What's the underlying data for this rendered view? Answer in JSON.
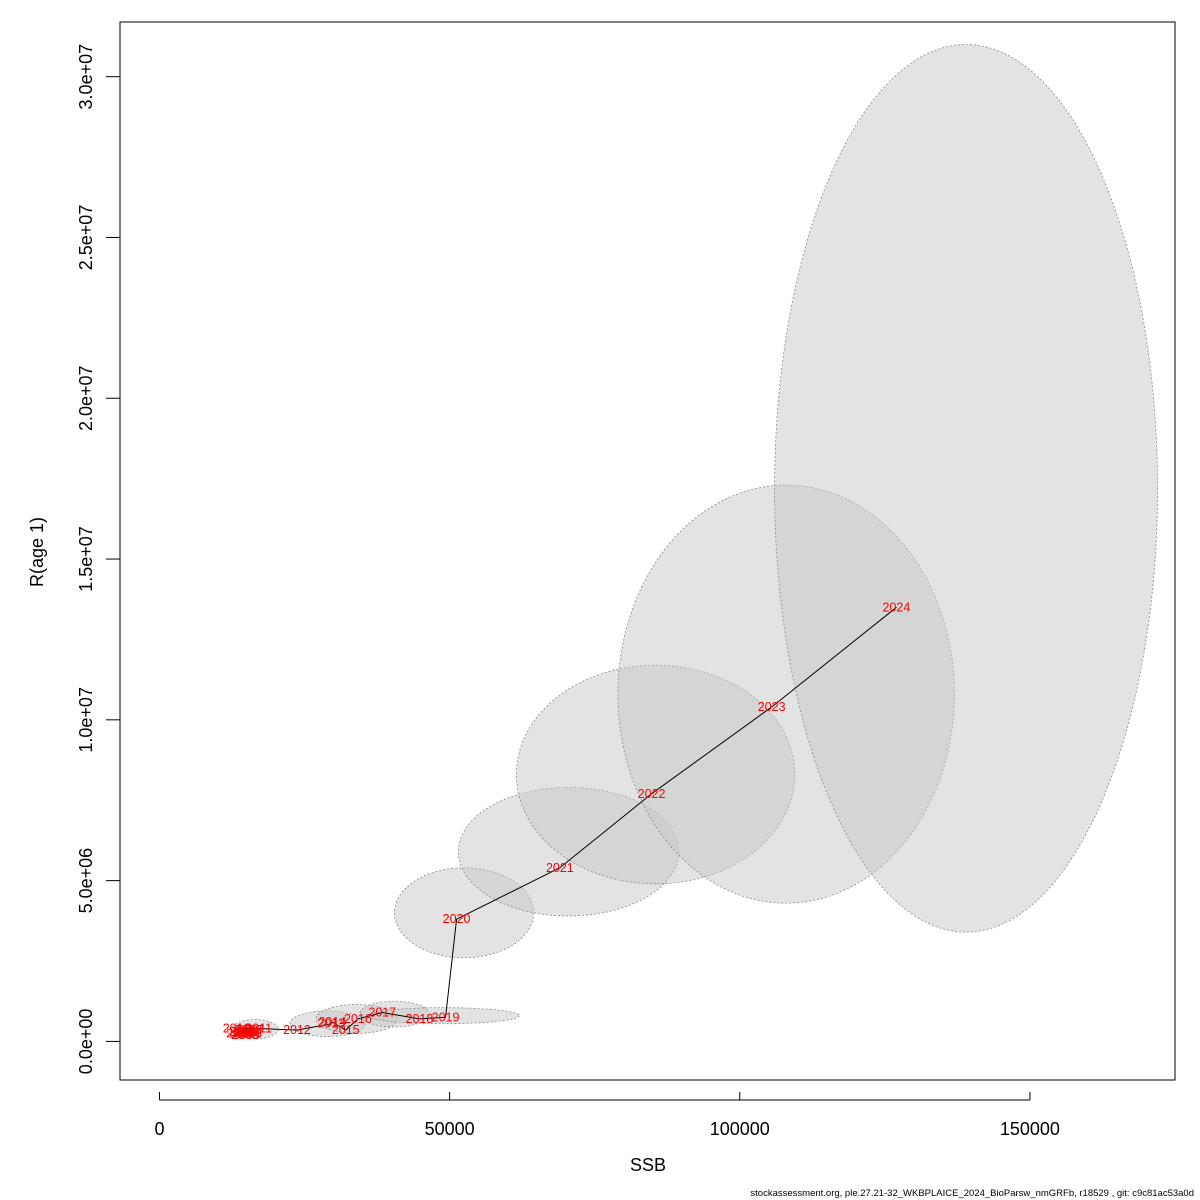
{
  "chart_data": {
    "type": "scatter",
    "xlabel": "SSB",
    "ylabel": "R(age 1)",
    "xlim": [
      -6800,
      175000
    ],
    "ylim": [
      -1200000,
      31700000
    ],
    "x_ticks": [
      0,
      50000,
      100000,
      150000
    ],
    "x_tick_labels": [
      "0",
      "50000",
      "100000",
      "150000"
    ],
    "y_ticks": [
      0,
      5000000,
      10000000,
      15000000,
      20000000,
      25000000,
      30000000
    ],
    "y_tick_labels": [
      "0.0e+00",
      "5.0e+06",
      "1.0e+07",
      "1.5e+07",
      "2.0e+07",
      "2.5e+07",
      "3.0e+07"
    ],
    "colors": {
      "labels": "#ff0000",
      "line": "#000000",
      "ellipse_fill": "#c8c8c8",
      "ellipse_stroke": "#8a8a8a"
    },
    "points": [
      {
        "year": "2002",
        "x": 14400,
        "y": 300000
      },
      {
        "year": "2003",
        "x": 14700,
        "y": 200000
      },
      {
        "year": "2004",
        "x": 15000,
        "y": 300000
      },
      {
        "year": "2005",
        "x": 14900,
        "y": 200000
      },
      {
        "year": "2006",
        "x": 15300,
        "y": 250000
      },
      {
        "year": "2007",
        "x": 15700,
        "y": 350000
      },
      {
        "year": "2008",
        "x": 13900,
        "y": 250000
      },
      {
        "year": "2009",
        "x": 15300,
        "y": 350000
      },
      {
        "year": "2010",
        "x": 13300,
        "y": 400000
      },
      {
        "year": "2011",
        "x": 17100,
        "y": 400000
      },
      {
        "year": "2012",
        "x": 23700,
        "y": 350000
      },
      {
        "year": "2013",
        "x": 29600,
        "y": 550000
      },
      {
        "year": "2014",
        "x": 29800,
        "y": 600000
      },
      {
        "year": "2015",
        "x": 32100,
        "y": 350000
      },
      {
        "year": "2016",
        "x": 34200,
        "y": 700000
      },
      {
        "year": "2017",
        "x": 38400,
        "y": 900000
      },
      {
        "year": "2018",
        "x": 44800,
        "y": 700000
      },
      {
        "year": "2019",
        "x": 49300,
        "y": 750000
      },
      {
        "year": "2020",
        "x": 51200,
        "y": 3800000
      },
      {
        "year": "2021",
        "x": 69000,
        "y": 5400000
      },
      {
        "year": "2022",
        "x": 84800,
        "y": 7700000
      },
      {
        "year": "2023",
        "x": 105500,
        "y": 10400000
      },
      {
        "year": "2024",
        "x": 127000,
        "y": 13500000
      }
    ],
    "ellipses": [
      {
        "year": "2013",
        "cx": 29000,
        "cy": 550000,
        "rx": 6500,
        "ry": 400000
      },
      {
        "year": "2016",
        "cx": 34000,
        "cy": 700000,
        "rx": 7000,
        "ry": 450000
      },
      {
        "year": "2017",
        "cx": 40500,
        "cy": 850000,
        "rx": 6000,
        "ry": 400000
      },
      {
        "year": "2019",
        "cx": 49000,
        "cy": 800000,
        "rx": 13000,
        "ry": 250000
      },
      {
        "year": "2011",
        "cx": 16500,
        "cy": 380000,
        "rx": 4000,
        "ry": 300000
      },
      {
        "year": "2020",
        "cx": 52500,
        "cy": 4000000,
        "rx": 12000,
        "ry": 1400000
      },
      {
        "year": "2021",
        "cx": 70500,
        "cy": 5900000,
        "rx": 19000,
        "ry": 2000000
      },
      {
        "year": "2022",
        "cx": 85500,
        "cy": 8300000,
        "rx": 24000,
        "ry": 3400000
      },
      {
        "year": "2023",
        "cx": 108000,
        "cy": 10800000,
        "rx": 29000,
        "ry": 6500000
      },
      {
        "year": "2024",
        "cx": 139000,
        "cy": 17200000,
        "rx": 33000,
        "ry": 13800000
      }
    ]
  },
  "footer": "stockassessment.org, ple.27.21-32_WKBPLAICE_2024_BioParsw_nmGRFb, r18529 , git: c9c81ac53a0d"
}
